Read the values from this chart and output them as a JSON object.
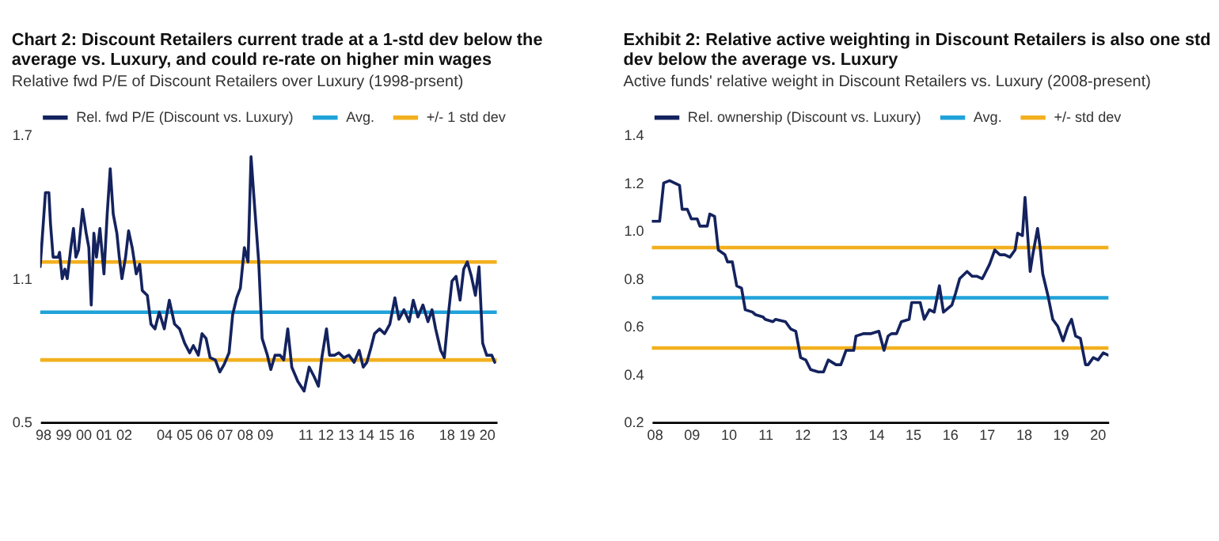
{
  "chart_data": [
    {
      "type": "line",
      "title": "Chart 2: Discount Retailers current trade at a 1-std dev below the\naverage vs. Luxury, and could re-rate on higher min wages",
      "subtitle": "Relative fwd P/E of Discount Retailers over Luxury (1998-prsent)",
      "legend": "top",
      "xlim": [
        1997.87,
        2020.5
      ],
      "xticks": [
        {
          "value": 1998,
          "label": "98"
        },
        {
          "value": 1999,
          "label": "99"
        },
        {
          "value": 2000,
          "label": "00"
        },
        {
          "value": 2001,
          "label": "01"
        },
        {
          "value": 2002,
          "label": "02"
        },
        {
          "value": 2004,
          "label": "04"
        },
        {
          "value": 2005,
          "label": "05"
        },
        {
          "value": 2006,
          "label": "06"
        },
        {
          "value": 2007,
          "label": "07"
        },
        {
          "value": 2008,
          "label": "08"
        },
        {
          "value": 2009,
          "label": "09"
        },
        {
          "value": 2011,
          "label": "11"
        },
        {
          "value": 2012,
          "label": "12"
        },
        {
          "value": 2013,
          "label": "13"
        },
        {
          "value": 2014,
          "label": "14"
        },
        {
          "value": 2015,
          "label": "15"
        },
        {
          "value": 2016,
          "label": "16"
        },
        {
          "value": 2018,
          "label": "18"
        },
        {
          "value": 2019,
          "label": "19"
        },
        {
          "value": 2020,
          "label": "20"
        }
      ],
      "ylim": [
        0.5,
        1.7
      ],
      "yticks": [
        0.5,
        1.1,
        1.7
      ],
      "series": [
        {
          "name": "Rel. fwd P/E (Discount vs. Luxury)",
          "color": "#14235e",
          "x": [
            1997.87,
            1998.13,
            1998.3,
            1998.38,
            1998.51,
            1998.76,
            1998.83,
            1998.96,
            1999.09,
            1999.21,
            1999.39,
            1999.52,
            1999.64,
            1999.77,
            1999.97,
            2000.15,
            2000.28,
            2000.4,
            2000.53,
            2000.66,
            2000.83,
            2001.03,
            2001.19,
            2001.34,
            2001.49,
            2001.67,
            2001.79,
            2001.92,
            2002.1,
            2002.25,
            2002.43,
            2002.63,
            2002.8,
            2002.93,
            2003.18,
            2003.36,
            2003.56,
            2003.77,
            2004.02,
            2004.27,
            2004.53,
            2004.78,
            2005.03,
            2005.28,
            2005.46,
            2005.71,
            2005.89,
            2006.09,
            2006.29,
            2006.55,
            2006.77,
            2006.98,
            2007.23,
            2007.41,
            2007.61,
            2007.79,
            2007.99,
            2008.17,
            2008.32,
            2008.49,
            2008.7,
            2008.87,
            2009.13,
            2009.3,
            2009.51,
            2009.76,
            2009.94,
            2010.14,
            2010.34,
            2010.64,
            2010.95,
            2011.2,
            2011.45,
            2011.66,
            2011.83,
            2012.06,
            2012.21,
            2012.46,
            2012.67,
            2012.92,
            2013.17,
            2013.43,
            2013.68,
            2013.88,
            2014.06,
            2014.26,
            2014.44,
            2014.69,
            2014.94,
            2015.2,
            2015.45,
            2015.65,
            2015.9,
            2016.16,
            2016.36,
            2016.59,
            2016.84,
            2017.09,
            2017.29,
            2017.47,
            2017.72,
            2017.9,
            2018.1,
            2018.28,
            2018.48,
            2018.68,
            2018.86,
            2019.04,
            2019.24,
            2019.44,
            2019.62,
            2019.8,
            2020.0,
            2020.25,
            2020.4
          ],
          "values": [
            1.15,
            1.46,
            1.46,
            1.33,
            1.19,
            1.19,
            1.21,
            1.1,
            1.14,
            1.1,
            1.23,
            1.31,
            1.19,
            1.22,
            1.39,
            1.29,
            1.23,
            0.99,
            1.29,
            1.19,
            1.31,
            1.12,
            1.37,
            1.56,
            1.37,
            1.29,
            1.19,
            1.1,
            1.19,
            1.3,
            1.23,
            1.12,
            1.16,
            1.05,
            1.03,
            0.91,
            0.89,
            0.96,
            0.89,
            1.01,
            0.91,
            0.89,
            0.83,
            0.79,
            0.82,
            0.78,
            0.87,
            0.85,
            0.77,
            0.76,
            0.71,
            0.74,
            0.79,
            0.95,
            1.02,
            1.06,
            1.23,
            1.17,
            1.61,
            1.41,
            1.17,
            0.85,
            0.78,
            0.72,
            0.78,
            0.78,
            0.76,
            0.89,
            0.73,
            0.67,
            0.63,
            0.73,
            0.69,
            0.65,
            0.77,
            0.89,
            0.78,
            0.78,
            0.79,
            0.77,
            0.78,
            0.75,
            0.8,
            0.73,
            0.75,
            0.81,
            0.87,
            0.89,
            0.87,
            0.91,
            1.02,
            0.93,
            0.97,
            0.92,
            1.01,
            0.94,
            0.99,
            0.92,
            0.97,
            0.89,
            0.8,
            0.77,
            0.95,
            1.09,
            1.11,
            1.01,
            1.14,
            1.17,
            1.11,
            1.03,
            1.15,
            0.83,
            0.78,
            0.78,
            0.75
          ]
        }
      ],
      "ref_lines": [
        {
          "axis": "y",
          "value": 0.96,
          "label": "Avg.",
          "color": "#1fa3d9"
        },
        {
          "axis": "y",
          "value": 1.17,
          "label": "+/- 1 std dev",
          "color": "#f2b01e"
        },
        {
          "axis": "y",
          "value": 0.76,
          "label": null,
          "color": "#f2b01e"
        }
      ]
    },
    {
      "type": "line",
      "title": "Exhibit 2: Relative active weighting in Discount Retailers is also one std\ndev below the average vs. Luxury",
      "subtitle": "Active funds' relative weight in Discount Retailers vs. Luxury (2008-present)",
      "legend": "top",
      "xlim": [
        2007.93,
        2020.3
      ],
      "xticks": [
        {
          "value": 2008,
          "label": "08"
        },
        {
          "value": 2009,
          "label": "09"
        },
        {
          "value": 2010,
          "label": "10"
        },
        {
          "value": 2011,
          "label": "11"
        },
        {
          "value": 2012,
          "label": "12"
        },
        {
          "value": 2013,
          "label": "13"
        },
        {
          "value": 2014,
          "label": "14"
        },
        {
          "value": 2015,
          "label": "15"
        },
        {
          "value": 2016,
          "label": "16"
        },
        {
          "value": 2017,
          "label": "17"
        },
        {
          "value": 2018,
          "label": "18"
        },
        {
          "value": 2019,
          "label": "19"
        },
        {
          "value": 2020,
          "label": "20"
        }
      ],
      "ylim": [
        0.2,
        1.4
      ],
      "yticks": [
        0.2,
        0.4,
        0.6,
        0.8,
        {
          "value": 1,
          "label": "1.0"
        },
        1.2,
        1.4
      ],
      "series": [
        {
          "name": "Rel. ownership (Discount vs. Luxury)",
          "color": "#14235e",
          "x": [
            2007.93,
            2008.14,
            2008.25,
            2008.41,
            2008.68,
            2008.75,
            2008.89,
            2009.0,
            2009.16,
            2009.23,
            2009.43,
            2009.5,
            2009.63,
            2009.73,
            2009.91,
            2009.98,
            2010.11,
            2010.23,
            2010.36,
            2010.46,
            2010.66,
            2010.73,
            2010.94,
            2011.0,
            2011.21,
            2011.28,
            2011.55,
            2011.69,
            2011.83,
            2011.96,
            2012.1,
            2012.23,
            2012.44,
            2012.58,
            2012.71,
            2012.92,
            2013.05,
            2013.19,
            2013.4,
            2013.46,
            2013.67,
            2013.87,
            2014.08,
            2014.22,
            2014.33,
            2014.42,
            2014.56,
            2014.69,
            2014.9,
            2014.97,
            2015.2,
            2015.31,
            2015.45,
            2015.58,
            2015.72,
            2015.83,
            2016.06,
            2016.16,
            2016.27,
            2016.47,
            2016.61,
            2016.74,
            2016.88,
            2016.95,
            2017.08,
            2017.22,
            2017.36,
            2017.49,
            2017.63,
            2017.77,
            2017.84,
            2017.97,
            2018.04,
            2018.18,
            2018.25,
            2018.38,
            2018.45,
            2018.52,
            2018.66,
            2018.79,
            2018.93,
            2019.07,
            2019.2,
            2019.3,
            2019.41,
            2019.54,
            2019.68,
            2019.75,
            2019.89,
            2020.02,
            2020.16,
            2020.3
          ],
          "values": [
            1.04,
            1.04,
            1.2,
            1.21,
            1.19,
            1.09,
            1.09,
            1.05,
            1.05,
            1.02,
            1.02,
            1.07,
            1.06,
            0.92,
            0.9,
            0.87,
            0.87,
            0.77,
            0.76,
            0.67,
            0.66,
            0.65,
            0.64,
            0.63,
            0.62,
            0.63,
            0.62,
            0.59,
            0.58,
            0.47,
            0.46,
            0.42,
            0.41,
            0.41,
            0.46,
            0.44,
            0.44,
            0.5,
            0.5,
            0.56,
            0.57,
            0.57,
            0.58,
            0.5,
            0.56,
            0.57,
            0.57,
            0.62,
            0.63,
            0.7,
            0.7,
            0.63,
            0.67,
            0.66,
            0.77,
            0.66,
            0.69,
            0.74,
            0.8,
            0.83,
            0.81,
            0.81,
            0.8,
            0.82,
            0.86,
            0.92,
            0.9,
            0.9,
            0.89,
            0.92,
            0.99,
            0.98,
            1.14,
            0.83,
            0.9,
            1.01,
            0.93,
            0.82,
            0.73,
            0.63,
            0.6,
            0.54,
            0.6,
            0.63,
            0.56,
            0.55,
            0.44,
            0.44,
            0.47,
            0.46,
            0.49,
            0.48
          ]
        }
      ],
      "ref_lines": [
        {
          "axis": "y",
          "value": 0.72,
          "label": "Avg.",
          "color": "#1fa3d9"
        },
        {
          "axis": "y",
          "value": 0.93,
          "label": "+/- std dev",
          "color": "#f2b01e"
        },
        {
          "axis": "y",
          "value": 0.51,
          "label": null,
          "color": "#f2b01e"
        }
      ]
    }
  ]
}
